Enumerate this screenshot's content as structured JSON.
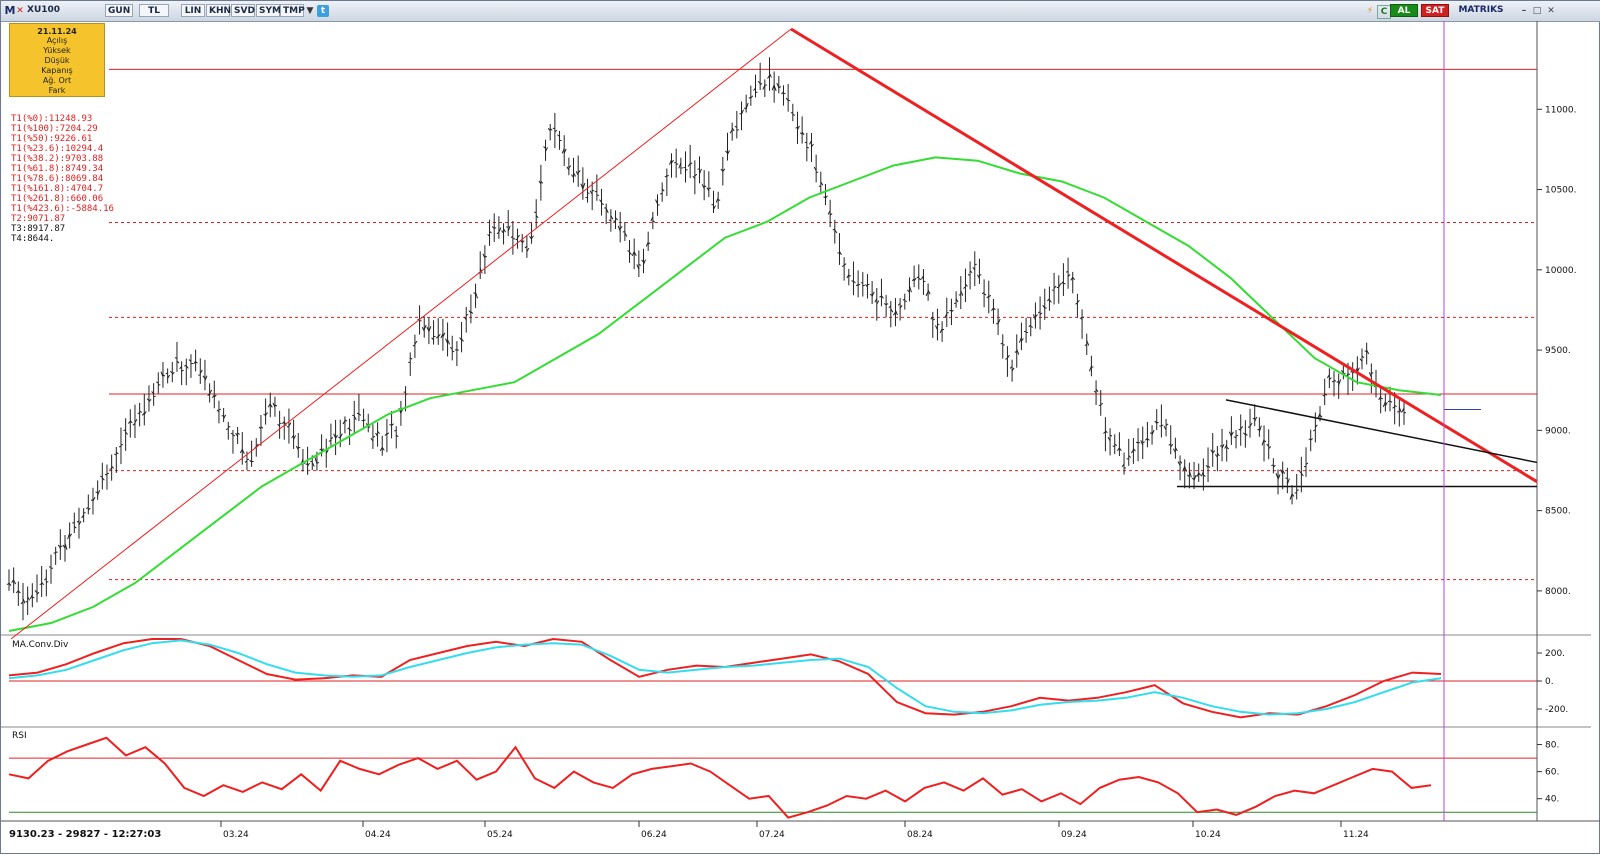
{
  "toolbar": {
    "logo": "M",
    "symbol": "XU100",
    "buttons": [
      "GUN",
      "TL",
      "LIN",
      "KHN",
      "SVD",
      "SYM",
      "TMP"
    ],
    "al": "AL",
    "sat": "SAT",
    "brand": "MATRIKS"
  },
  "infobox": {
    "date": "21.11.24",
    "rows": [
      "Açılış",
      "Yüksek",
      "Düşük",
      "Kapanış",
      "Ağ. Ort",
      "Fark"
    ]
  },
  "levels": {
    "red": [
      "T1(%0):11248.93",
      "T1(%100):7204.29",
      "T1(%50):9226.61",
      "T1(%23.6):10294.4",
      "T1(%38.2):9703.88",
      "T1(%61.8):8749.34",
      "T1(%78.6):8069.84",
      "T1(%161.8):4704.7",
      "T1(%261.8):660.06",
      "T1(%423.6):-5884.16"
    ],
    "black": [
      "T2:9071.87",
      "T3:8917.87",
      "T4:8644."
    ]
  },
  "status": "9130.23 - 29827 - 12:27:03",
  "colors": {
    "price": "#222222",
    "ma": "#33dd33",
    "trend_red": "#ee2020",
    "fib": "#e02020",
    "macd": "#ee2020",
    "signal": "#33ddee",
    "rsi": "#ee2020",
    "cursor": "#bb44dd"
  },
  "chart_data": [
    {
      "type": "ohlc",
      "panel": "price",
      "ylim": [
        7750,
        11550
      ],
      "yticks": [
        8000,
        8500,
        9000,
        9500,
        10000,
        10500,
        11000
      ],
      "xticklabels": [
        "03.24",
        "04.24",
        "05.24",
        "06.24",
        "07.24",
        "08.24",
        "09.24",
        "10.24",
        "11.24"
      ],
      "price_path": [
        8050,
        7950,
        8100,
        8300,
        8500,
        8700,
        8900,
        9100,
        9300,
        9400,
        9420,
        9200,
        9000,
        8800,
        9200,
        9000,
        8800,
        8900,
        9000,
        9100,
        8900,
        9050,
        9700,
        9600,
        9500,
        9800,
        10300,
        10200,
        10100,
        10900,
        10700,
        10500,
        10400,
        10200,
        10000,
        10500,
        10700,
        10600,
        10400,
        10900,
        11100,
        11200,
        11000,
        10800,
        10400,
        10000,
        9900,
        9800,
        9750,
        10000,
        9600,
        9800,
        10050,
        9700,
        9400,
        9700,
        9850,
        10000,
        9500,
        9000,
        8800,
        8950,
        9050,
        8800,
        8700,
        8900,
        8950,
        9050,
        8800,
        8600,
        8900,
        9300,
        9350,
        9450,
        9150,
        9130
      ],
      "ma_path": [
        7750,
        7800,
        7900,
        8050,
        8250,
        8450,
        8650,
        8800,
        8950,
        9100,
        9200,
        9250,
        9300,
        9450,
        9600,
        9800,
        10000,
        10200,
        10300,
        10450,
        10550,
        10650,
        10700,
        10680,
        10600,
        10550,
        10450,
        10300,
        10150,
        9950,
        9700,
        9450,
        9300,
        9250,
        9220
      ],
      "horizontal_lines": [
        11248.93,
        9226.61,
        10294.4,
        9703.88,
        8749.34,
        8069.84
      ],
      "support": 8650,
      "value_marker": 9130
    },
    {
      "type": "line",
      "title": "MA.Conv.Div",
      "ylim": [
        -300,
        300
      ],
      "yticks": [
        200,
        0,
        -200
      ],
      "series": [
        {
          "values": [
            40,
            60,
            120,
            200,
            270,
            300,
            300,
            250,
            150,
            50,
            10,
            20,
            40,
            30,
            150,
            200,
            250,
            280,
            250,
            300,
            280,
            150,
            30,
            80,
            110,
            100,
            130,
            160,
            190,
            140,
            50,
            -150,
            -230,
            -240,
            -220,
            -180,
            -120,
            -140,
            -120,
            -80,
            -30,
            -160,
            -220,
            -260,
            -230,
            -240,
            -180,
            -100,
            0,
            60,
            50
          ]
        },
        {
          "values": [
            20,
            40,
            80,
            150,
            220,
            270,
            290,
            260,
            200,
            120,
            60,
            40,
            30,
            40,
            100,
            150,
            200,
            240,
            260,
            270,
            260,
            180,
            80,
            60,
            80,
            100,
            110,
            130,
            150,
            160,
            100,
            -50,
            -180,
            -220,
            -230,
            -210,
            -170,
            -150,
            -140,
            -120,
            -80,
            -120,
            -180,
            -220,
            -240,
            -230,
            -200,
            -150,
            -80,
            -10,
            20
          ]
        }
      ]
    },
    {
      "type": "line",
      "title": "RSI",
      "ylim": [
        25,
        90
      ],
      "yticks": [
        80,
        60,
        40
      ],
      "reference_lines": [
        70,
        30
      ],
      "values": [
        58,
        55,
        68,
        75,
        80,
        85,
        72,
        78,
        66,
        48,
        42,
        50,
        45,
        52,
        47,
        58,
        46,
        68,
        62,
        58,
        65,
        70,
        62,
        68,
        54,
        60,
        78,
        55,
        48,
        60,
        52,
        48,
        58,
        62,
        64,
        66,
        60,
        50,
        40,
        42,
        26,
        30,
        35,
        42,
        40,
        46,
        38,
        48,
        52,
        46,
        55,
        43,
        47,
        38,
        44,
        36,
        48,
        54,
        56,
        52,
        44,
        30,
        32,
        28,
        34,
        42,
        46,
        44,
        50,
        56,
        62,
        60,
        48,
        50
      ]
    }
  ]
}
